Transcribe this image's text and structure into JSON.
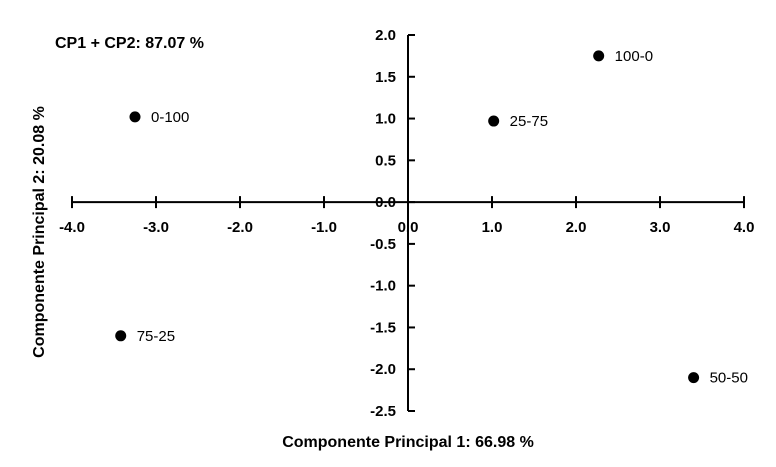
{
  "chart_data": {
    "type": "scatter",
    "title": "",
    "annotation": "CP1 + CP2: 87.07 %",
    "xlabel": "Componente Principal 1: 66.98 %",
    "ylabel": "Componente Principal 2: 20.08 %",
    "xlim": [
      -4.0,
      4.0
    ],
    "ylim": [
      -2.5,
      2.0
    ],
    "x_ticks": [
      -4.0,
      -3.0,
      -2.0,
      -1.0,
      0.0,
      1.0,
      2.0,
      3.0,
      4.0
    ],
    "x_tick_labels": [
      "-4.0",
      "-3.0",
      "-2.0",
      "-1.0",
      "0.0",
      "1.0",
      "2.0",
      "3.0",
      "4.0"
    ],
    "y_ticks": [
      2.0,
      1.5,
      1.0,
      0.5,
      0.0,
      -0.5,
      -1.0,
      -1.5,
      -2.0,
      -2.5
    ],
    "y_tick_labels": [
      "2.0",
      "1.5",
      "1.0",
      "0.5",
      "0.0",
      "-0.5",
      "-1.0",
      "-1.5",
      "-2.0",
      "-2.5"
    ],
    "grid": false,
    "marker_color": "#000000",
    "points": [
      {
        "label": "100-0",
        "x": 2.27,
        "y": 1.75
      },
      {
        "label": "0-100",
        "x": -3.25,
        "y": 1.02
      },
      {
        "label": "25-75",
        "x": 1.02,
        "y": 0.97
      },
      {
        "label": "75-25",
        "x": -3.42,
        "y": -1.6
      },
      {
        "label": "50-50",
        "x": 3.4,
        "y": -2.1
      }
    ]
  }
}
